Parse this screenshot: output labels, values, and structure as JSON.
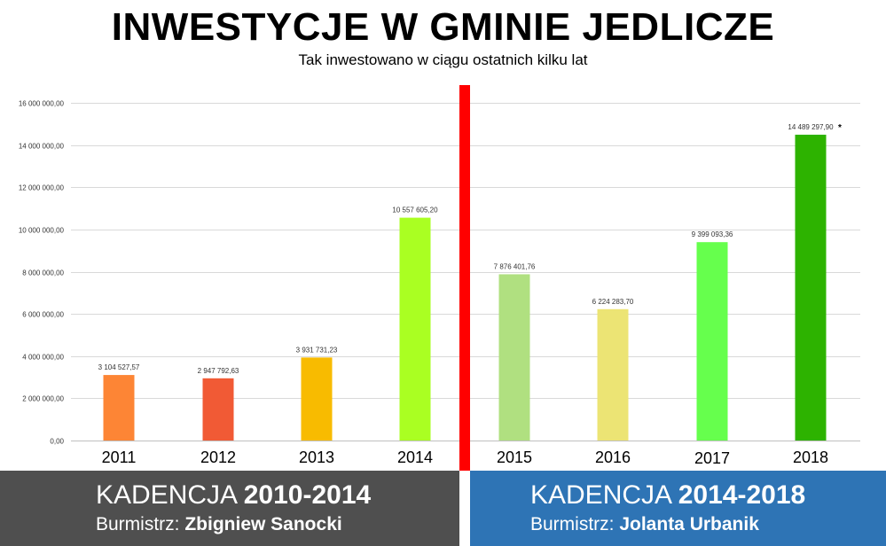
{
  "header": {
    "title": "INWESTYCJE W GMINIE JEDLICZE",
    "subtitle": "Tak inwestowano w ciągu ostatnich kilku lat"
  },
  "chart_data": {
    "type": "bar",
    "categories": [
      "2011",
      "2012",
      "2013",
      "2014",
      "2015",
      "2016",
      "2017",
      "2018"
    ],
    "values": [
      3104527.57,
      2947792.63,
      3931731.23,
      10557605.2,
      7876401.76,
      6224283.7,
      9399093.36,
      14489297.9
    ],
    "data_labels": [
      "3 104 527,57",
      "2 947 792,63",
      "3 931 731,23",
      "10 557 605,20",
      "7 876 401,76",
      "6 224 283,70",
      "9 399 093,36",
      "14 489 297,90"
    ],
    "data_label_suffixes": [
      "",
      "",
      "",
      "",
      "",
      "",
      "",
      "*"
    ],
    "colors": [
      "#fd8535",
      "#f15a35",
      "#f8bb00",
      "#aaff22",
      "#b0e080",
      "#ece474",
      "#66ff4d",
      "#2db300"
    ],
    "ylim": [
      0,
      16000000
    ],
    "yticks": [
      0,
      2000000,
      4000000,
      6000000,
      8000000,
      10000000,
      12000000,
      14000000,
      16000000
    ],
    "ytick_labels": [
      "0,00",
      "2 000 000,00",
      "4 000 000,00",
      "6 000 000,00",
      "8 000 000,00",
      "10 000 000,00",
      "12 000 000,00",
      "14 000 000,00",
      "16 000 000,00"
    ],
    "grid": true,
    "divider_color": "#ff0000"
  },
  "footer": {
    "left": {
      "term_prefix": "KADENCJA ",
      "term_years": "2010-2014",
      "mayor_prefix": "Burmistrz: ",
      "mayor_name": "Zbigniew Sanocki",
      "color": "#4f4f4f"
    },
    "right": {
      "term_prefix": "KADENCJA ",
      "term_years": "2014-2018",
      "mayor_prefix": "Burmistrz: ",
      "mayor_name": "Jolanta Urbanik",
      "color": "#2e74b5"
    }
  }
}
